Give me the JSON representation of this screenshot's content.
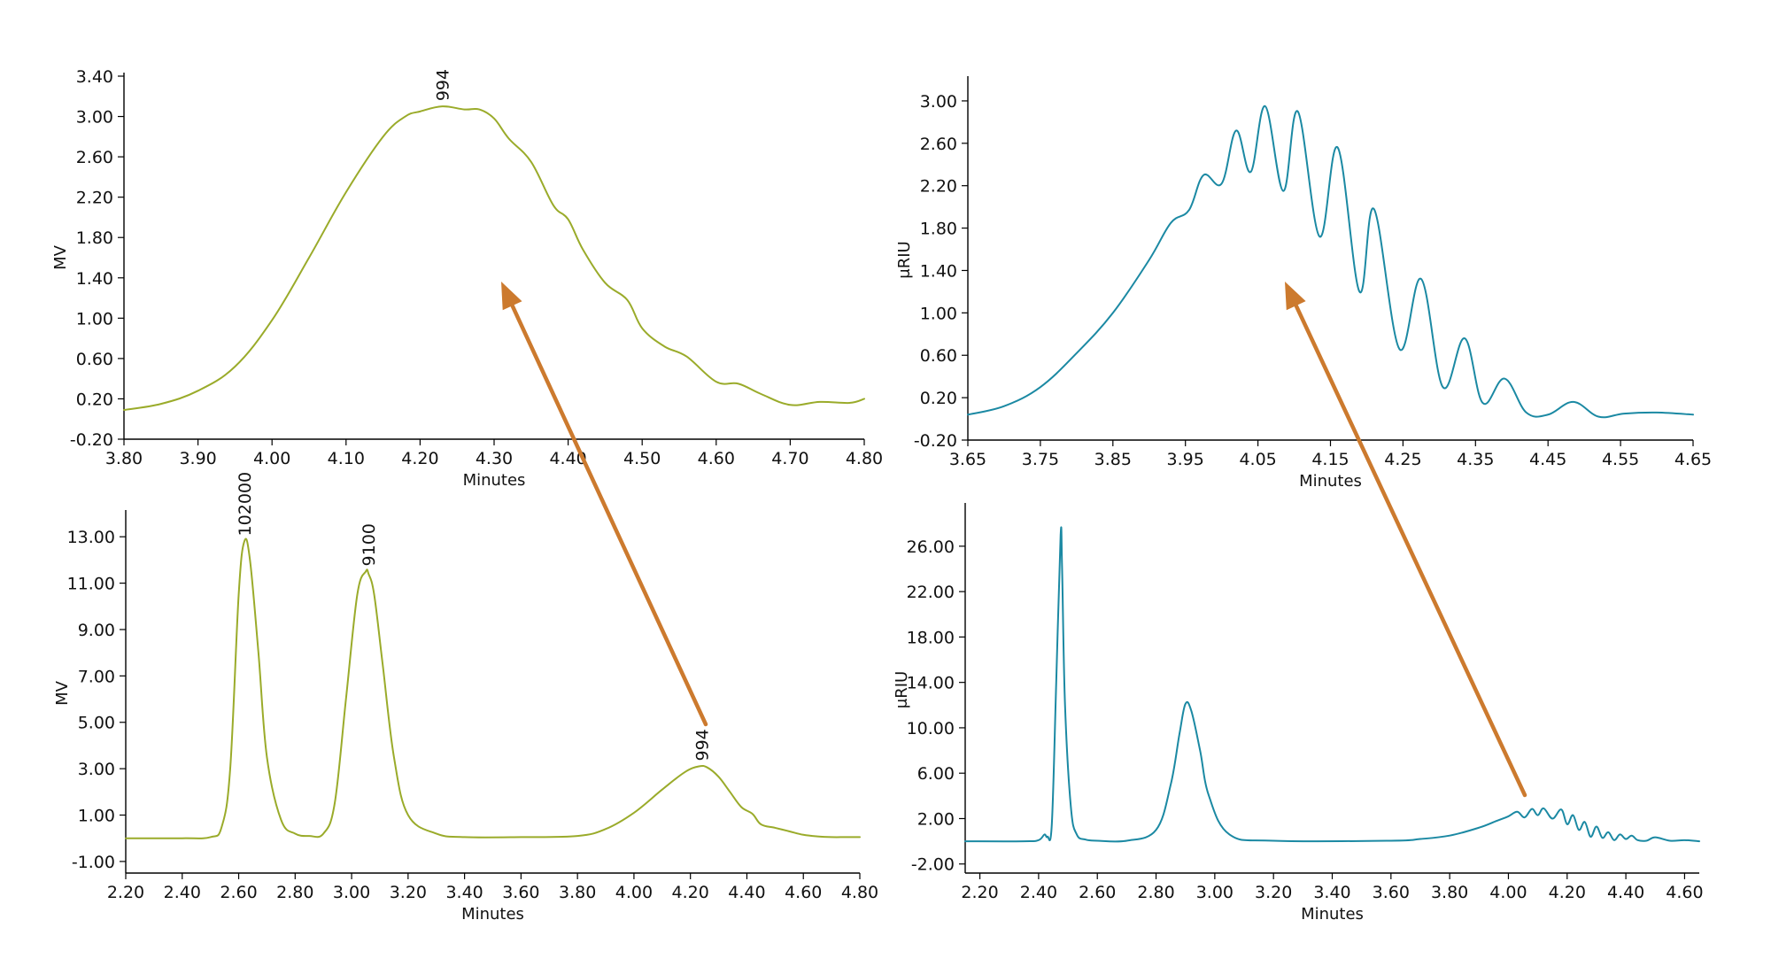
{
  "colors": {
    "green_trace": "#9aab2a",
    "teal_trace": "#1b89a3",
    "arrow": "#cc7a2e"
  },
  "chart_data": [
    {
      "id": "top-left",
      "type": "line",
      "title": "",
      "xlabel": "Minutes",
      "ylabel": "MV",
      "xlim": [
        3.8,
        4.8
      ],
      "ylim": [
        -0.2,
        3.4
      ],
      "xticks": [
        "3.80",
        "3.90",
        "4.00",
        "4.10",
        "4.20",
        "4.30",
        "4.40",
        "4.50",
        "4.60",
        "4.70",
        "4.80"
      ],
      "yticks": [
        "-0.20",
        "0.20",
        "0.60",
        "1.00",
        "1.40",
        "1.80",
        "2.20",
        "2.60",
        "3.00",
        "3.40"
      ],
      "color": "#9aab2a",
      "annotations": [
        {
          "text": "994",
          "x": 4.23,
          "y": 3.1
        }
      ],
      "series": [
        {
          "x": [
            3.8,
            3.85,
            3.9,
            3.95,
            4.0,
            4.05,
            4.1,
            4.15,
            4.18,
            4.2,
            4.23,
            4.26,
            4.28,
            4.3,
            4.32,
            4.35,
            4.38,
            4.4,
            4.42,
            4.45,
            4.48,
            4.5,
            4.53,
            4.56,
            4.6,
            4.63,
            4.66,
            4.7,
            4.74,
            4.78,
            4.8
          ],
          "y": [
            0.09,
            0.15,
            0.28,
            0.52,
            0.98,
            1.6,
            2.25,
            2.8,
            3.0,
            3.05,
            3.1,
            3.07,
            3.07,
            2.98,
            2.78,
            2.55,
            2.12,
            1.98,
            1.68,
            1.35,
            1.18,
            0.9,
            0.72,
            0.62,
            0.37,
            0.35,
            0.25,
            0.14,
            0.17,
            0.16,
            0.2
          ]
        }
      ]
    },
    {
      "id": "top-right",
      "type": "line",
      "title": "",
      "xlabel": "Minutes",
      "ylabel": "μRIU",
      "xlim": [
        3.65,
        4.65
      ],
      "ylim": [
        -0.2,
        3.2
      ],
      "xticks": [
        "3.65",
        "3.75",
        "3.85",
        "3.95",
        "4.05",
        "4.15",
        "4.25",
        "4.35",
        "4.45",
        "4.55",
        "4.65"
      ],
      "yticks": [
        "-0.20",
        "0.20",
        "0.60",
        "1.00",
        "1.40",
        "1.80",
        "2.20",
        "2.60",
        "3.00"
      ],
      "color": "#1b89a3",
      "series": [
        {
          "x": [
            3.65,
            3.7,
            3.75,
            3.8,
            3.85,
            3.9,
            3.93,
            3.955,
            3.975,
            4.0,
            4.02,
            4.04,
            4.06,
            4.085,
            4.105,
            4.135,
            4.16,
            4.19,
            4.21,
            4.245,
            4.275,
            4.305,
            4.335,
            4.36,
            4.39,
            4.42,
            4.45,
            4.485,
            4.52,
            4.555,
            4.6,
            4.65
          ],
          "y": [
            0.04,
            0.12,
            0.3,
            0.62,
            1.0,
            1.5,
            1.85,
            1.97,
            2.3,
            2.22,
            2.72,
            2.33,
            2.95,
            2.15,
            2.9,
            1.72,
            2.56,
            1.2,
            1.98,
            0.66,
            1.32,
            0.3,
            0.76,
            0.15,
            0.38,
            0.06,
            0.04,
            0.16,
            0.02,
            0.05,
            0.06,
            0.04
          ]
        }
      ]
    },
    {
      "id": "bottom-left",
      "type": "line",
      "title": "",
      "xlabel": "Minutes",
      "ylabel": "MV",
      "xlim": [
        2.2,
        4.8
      ],
      "ylim": [
        -1.5,
        14.0
      ],
      "xticks": [
        "2.20",
        "2.40",
        "2.60",
        "2.80",
        "3.00",
        "3.20",
        "3.40",
        "3.60",
        "3.80",
        "4.00",
        "4.20",
        "4.40",
        "4.60",
        "4.80"
      ],
      "yticks": [
        "-1.00",
        "1.00",
        "3.00",
        "5.00",
        "7.00",
        "9.00",
        "11.00",
        "13.00"
      ],
      "color": "#9aab2a",
      "annotations": [
        {
          "text": "102000",
          "x": 2.62,
          "y": 12.8
        },
        {
          "text": "9100",
          "x": 3.06,
          "y": 11.5
        },
        {
          "text": "994",
          "x": 4.24,
          "y": 3.1
        }
      ],
      "series": [
        {
          "x": [
            2.2,
            2.4,
            2.5,
            2.54,
            2.57,
            2.6,
            2.62,
            2.64,
            2.67,
            2.7,
            2.75,
            2.8,
            2.85,
            2.9,
            2.94,
            2.98,
            3.02,
            3.05,
            3.06,
            3.08,
            3.11,
            3.15,
            3.2,
            3.3,
            3.4,
            3.6,
            3.8,
            3.9,
            4.0,
            4.1,
            4.18,
            4.23,
            4.26,
            4.3,
            4.34,
            4.38,
            4.42,
            4.45,
            4.5,
            4.55,
            4.6,
            4.65,
            4.7,
            4.75,
            4.8
          ],
          "y": [
            0.0,
            0.0,
            0.05,
            0.5,
            3.0,
            10.5,
            12.8,
            12.0,
            8.0,
            3.5,
            0.8,
            0.2,
            0.1,
            0.2,
            1.5,
            6.0,
            10.5,
            11.5,
            11.4,
            10.5,
            7.5,
            3.5,
            1.0,
            0.2,
            0.05,
            0.05,
            0.1,
            0.4,
            1.1,
            2.1,
            2.85,
            3.1,
            3.05,
            2.65,
            2.0,
            1.35,
            1.05,
            0.6,
            0.45,
            0.3,
            0.15,
            0.08,
            0.05,
            0.05,
            0.05
          ]
        }
      ]
    },
    {
      "id": "bottom-right",
      "type": "line",
      "title": "",
      "xlabel": "Minutes",
      "ylabel": "μRIU",
      "xlim": [
        2.15,
        4.65
      ],
      "ylim": [
        -2.8,
        29.5
      ],
      "xticks": [
        "2.20",
        "2.40",
        "2.60",
        "2.80",
        "3.00",
        "3.20",
        "3.40",
        "3.60",
        "3.80",
        "4.00",
        "4.20",
        "4.40",
        "4.60"
      ],
      "yticks": [
        "-2.00",
        "2.00",
        "6.00",
        "10.00",
        "14.00",
        "18.00",
        "22.00",
        "26.00"
      ],
      "color": "#1b89a3",
      "series": [
        {
          "x": [
            2.15,
            2.35,
            2.4,
            2.42,
            2.43,
            2.445,
            2.46,
            2.475,
            2.48,
            2.49,
            2.51,
            2.53,
            2.56,
            2.6,
            2.7,
            2.8,
            2.85,
            2.88,
            2.9,
            2.92,
            2.95,
            2.98,
            3.05,
            3.2,
            3.6,
            3.7,
            3.8,
            3.9,
            3.96,
            4.0,
            4.03,
            4.055,
            4.08,
            4.1,
            4.12,
            4.15,
            4.18,
            4.2,
            4.22,
            4.24,
            4.26,
            4.28,
            4.3,
            4.32,
            4.34,
            4.36,
            4.38,
            4.4,
            4.42,
            4.44,
            4.47,
            4.5,
            4.55,
            4.6,
            4.65
          ],
          "y": [
            0.0,
            0.0,
            0.1,
            0.6,
            0.4,
            1.5,
            14.0,
            27.0,
            24.0,
            12.0,
            3.0,
            0.6,
            0.15,
            0.05,
            0.05,
            1.0,
            5.0,
            9.5,
            12.1,
            11.5,
            8.0,
            4.0,
            0.6,
            0.05,
            0.05,
            0.2,
            0.5,
            1.2,
            1.8,
            2.2,
            2.6,
            2.1,
            2.85,
            2.3,
            2.9,
            2.0,
            2.8,
            1.5,
            2.3,
            1.0,
            1.7,
            0.4,
            1.3,
            0.3,
            0.8,
            0.1,
            0.6,
            0.2,
            0.5,
            0.1,
            0.05,
            0.35,
            0.05,
            0.1,
            0.0
          ]
        }
      ]
    }
  ]
}
